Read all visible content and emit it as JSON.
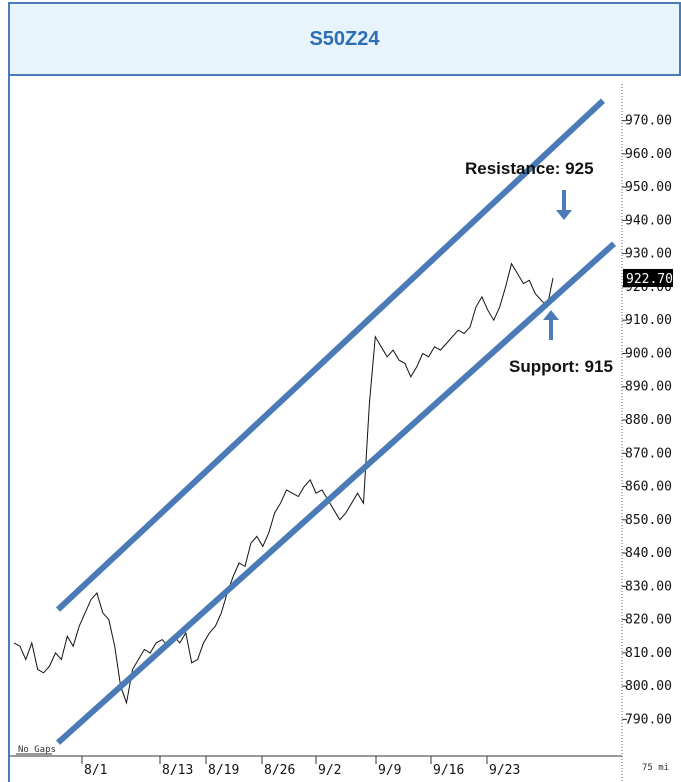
{
  "header": {
    "title": "S50Z24"
  },
  "chart_data": {
    "type": "line",
    "title": "S50Z24",
    "ylim": [
      782,
      978
    ],
    "y_ticks": [
      970,
      960,
      950,
      940,
      930,
      920,
      910,
      900,
      890,
      880,
      870,
      860,
      850,
      840,
      830,
      820,
      810,
      800,
      790
    ],
    "y_tick_labels": [
      "970.00",
      "960.00",
      "950.00",
      "940.00",
      "930.00",
      "920.00",
      "910.00",
      "900.00",
      "890.00",
      "880.00",
      "870.00",
      "860.00",
      "850.00",
      "840.00",
      "830.00",
      "820.00",
      "810.00",
      "800.00",
      "790.00"
    ],
    "x_tick_labels": [
      "8/1",
      "8/13",
      "8/19",
      "8/26",
      "9/2",
      "9/9",
      "9/16",
      "9/23"
    ],
    "last_price_label": "922.70",
    "corner_left": "No Gaps",
    "corner_right": "75 mi",
    "series": [
      {
        "values": [
          813,
          812,
          808,
          813,
          805,
          804,
          806,
          810,
          808,
          815,
          812,
          818,
          822,
          826,
          828,
          822,
          820,
          812,
          800,
          795,
          805,
          808,
          811,
          810,
          813,
          814,
          812,
          815,
          813,
          816,
          807,
          808,
          813,
          816,
          818,
          822,
          828,
          833,
          837,
          836,
          843,
          845,
          842,
          846,
          852,
          855,
          859,
          858,
          857,
          860,
          862,
          858,
          859,
          856,
          853,
          850,
          852,
          855,
          858,
          855,
          885,
          905,
          902,
          899,
          901,
          898,
          897,
          893,
          896,
          900,
          899,
          902,
          901,
          903,
          905,
          907,
          906,
          908,
          914,
          917,
          913,
          910,
          914,
          920,
          927,
          924,
          921,
          922,
          918,
          916,
          914,
          922.7
        ]
      }
    ],
    "channel_lines": [
      {
        "name": "resistance-line",
        "start": [
          0,
          823
        ],
        "end": [
          91,
          976
        ]
      },
      {
        "name": "support-line",
        "start": [
          0,
          783
        ],
        "end": [
          91,
          933
        ]
      }
    ],
    "annotations": [
      {
        "text": "Resistance: 925"
      },
      {
        "text": "Support: 915"
      }
    ],
    "colors": {
      "channel": "#4a7bb7",
      "price": "#111111",
      "title": "#2e6db4",
      "header_bg": "#e8f4fc"
    }
  }
}
